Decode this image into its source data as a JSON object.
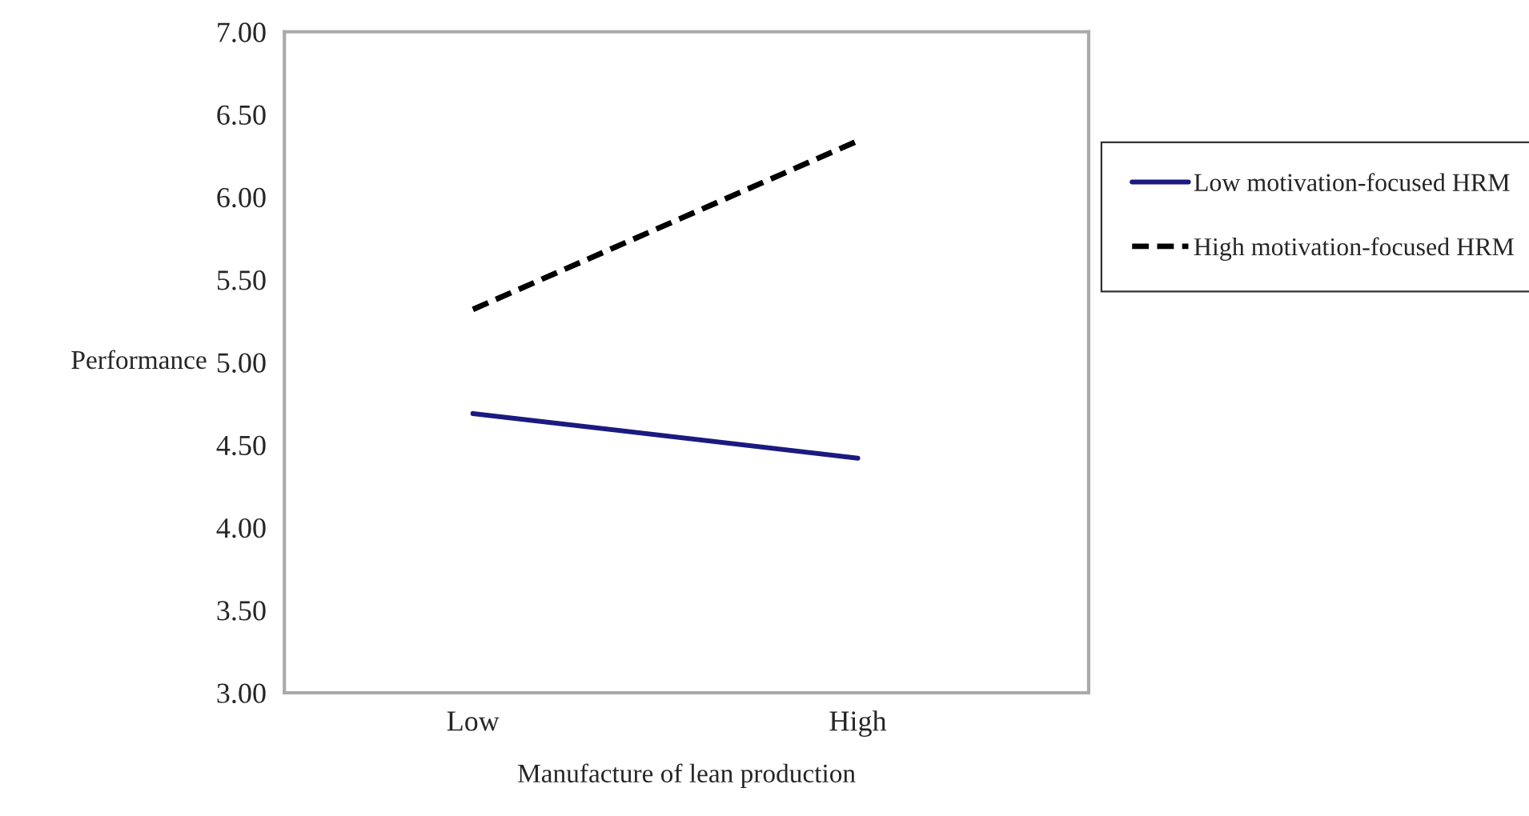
{
  "chart_data": {
    "type": "line",
    "xlabel": "Manufacture of lean production",
    "ylabel": "Performance",
    "categories": [
      "Low",
      "High"
    ],
    "series": [
      {
        "name": "Low motivation-focused HRM",
        "color": "#1a1a80",
        "values": [
          4.69,
          4.42
        ],
        "line_style": "solid"
      },
      {
        "name": "High motivation-focused HRM",
        "color": "#000000",
        "values": [
          5.32,
          6.34
        ],
        "line_style": "dashed"
      }
    ],
    "ylim": [
      3.0,
      7.0
    ],
    "yticks": [
      {
        "value": 3.0,
        "label": "3.00"
      },
      {
        "value": 3.5,
        "label": "3.50"
      },
      {
        "value": 4.0,
        "label": "4.00"
      },
      {
        "value": 4.5,
        "label": "4.50"
      },
      {
        "value": 5.0,
        "label": "5.00"
      },
      {
        "value": 5.5,
        "label": "5.50"
      },
      {
        "value": 6.0,
        "label": "6.00"
      },
      {
        "value": 6.5,
        "label": "6.50"
      },
      {
        "value": 7.0,
        "label": "7.00"
      }
    ],
    "grid": false,
    "legend": "right",
    "marker": "none"
  }
}
